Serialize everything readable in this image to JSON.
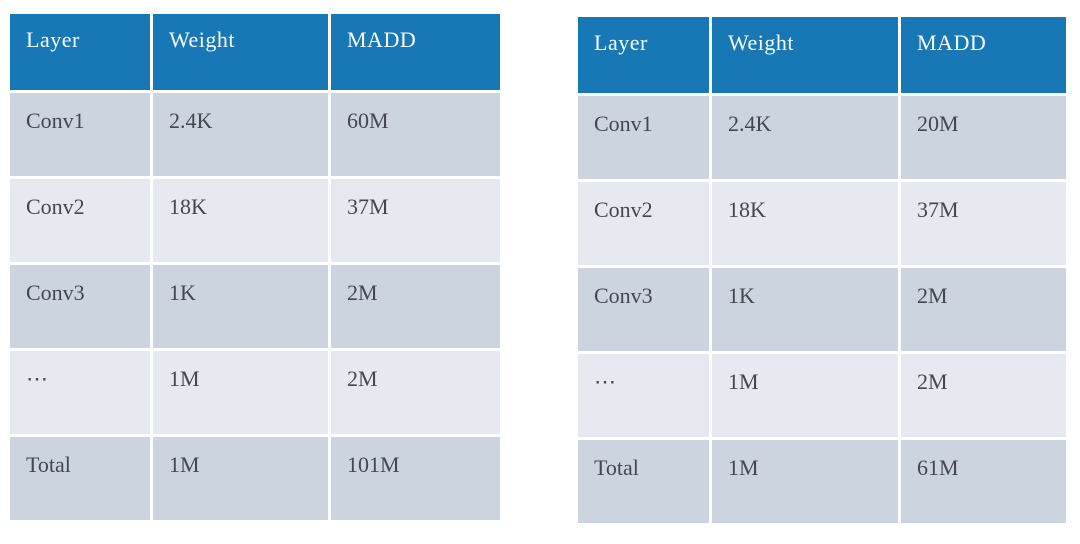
{
  "colors": {
    "header_bg": "#1878b6",
    "header_text": "#f8fbfd",
    "row_dark": "#ccd4e0",
    "row_light": "#e6eaf0",
    "cell_text": "#45474f",
    "page_bg": "#ffffff"
  },
  "tables": [
    {
      "name": "left-layer-stats",
      "columns": [
        "Layer",
        "Weight",
        "MADD"
      ],
      "rows": [
        [
          "Conv1",
          "2.4K",
          "60M"
        ],
        [
          "Conv2",
          "18K",
          "37M"
        ],
        [
          "Conv3",
          "1K",
          "2M"
        ],
        [
          "⋯",
          "1M",
          "2M"
        ],
        [
          "Total",
          "1M",
          "101M"
        ]
      ]
    },
    {
      "name": "right-layer-stats",
      "columns": [
        "Layer",
        "Weight",
        "MADD"
      ],
      "rows": [
        [
          "Conv1",
          "2.4K",
          "20M"
        ],
        [
          "Conv2",
          "18K",
          "37M"
        ],
        [
          "Conv3",
          "1K",
          "2M"
        ],
        [
          "⋯",
          "1M",
          "2M"
        ],
        [
          "Total",
          "1M",
          "61M"
        ]
      ]
    }
  ]
}
